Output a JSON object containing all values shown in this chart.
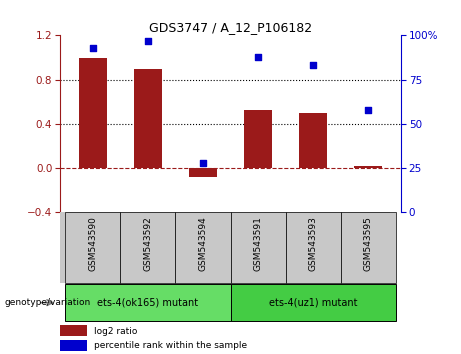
{
  "title": "GDS3747 / A_12_P106182",
  "samples": [
    "GSM543590",
    "GSM543592",
    "GSM543594",
    "GSM543591",
    "GSM543593",
    "GSM543595"
  ],
  "log2_ratio": [
    1.0,
    0.9,
    -0.08,
    0.53,
    0.5,
    0.02
  ],
  "percentile_rank": [
    93,
    97,
    28,
    88,
    83,
    58
  ],
  "bar_color": "#9B1A1A",
  "dot_color": "#0000CD",
  "ylim_left": [
    -0.4,
    1.2
  ],
  "ylim_right": [
    0,
    100
  ],
  "yticks_left": [
    -0.4,
    0.0,
    0.4,
    0.8,
    1.2
  ],
  "yticks_right": [
    0,
    25,
    50,
    75,
    100
  ],
  "groups": [
    {
      "label": "ets-4(ok165) mutant",
      "indices": [
        0,
        1,
        2
      ],
      "color": "#66DD66"
    },
    {
      "label": "ets-4(uz1) mutant",
      "indices": [
        3,
        4,
        5
      ],
      "color": "#44CC44"
    }
  ],
  "group_label_prefix": "genotype/variation",
  "legend_log2": "log2 ratio",
  "legend_pct": "percentile rank within the sample",
  "hline_y": 0.0,
  "dotted_lines": [
    0.4,
    0.8
  ],
  "bg_plot": "#FFFFFF",
  "bg_xtick": "#C8C8C8"
}
